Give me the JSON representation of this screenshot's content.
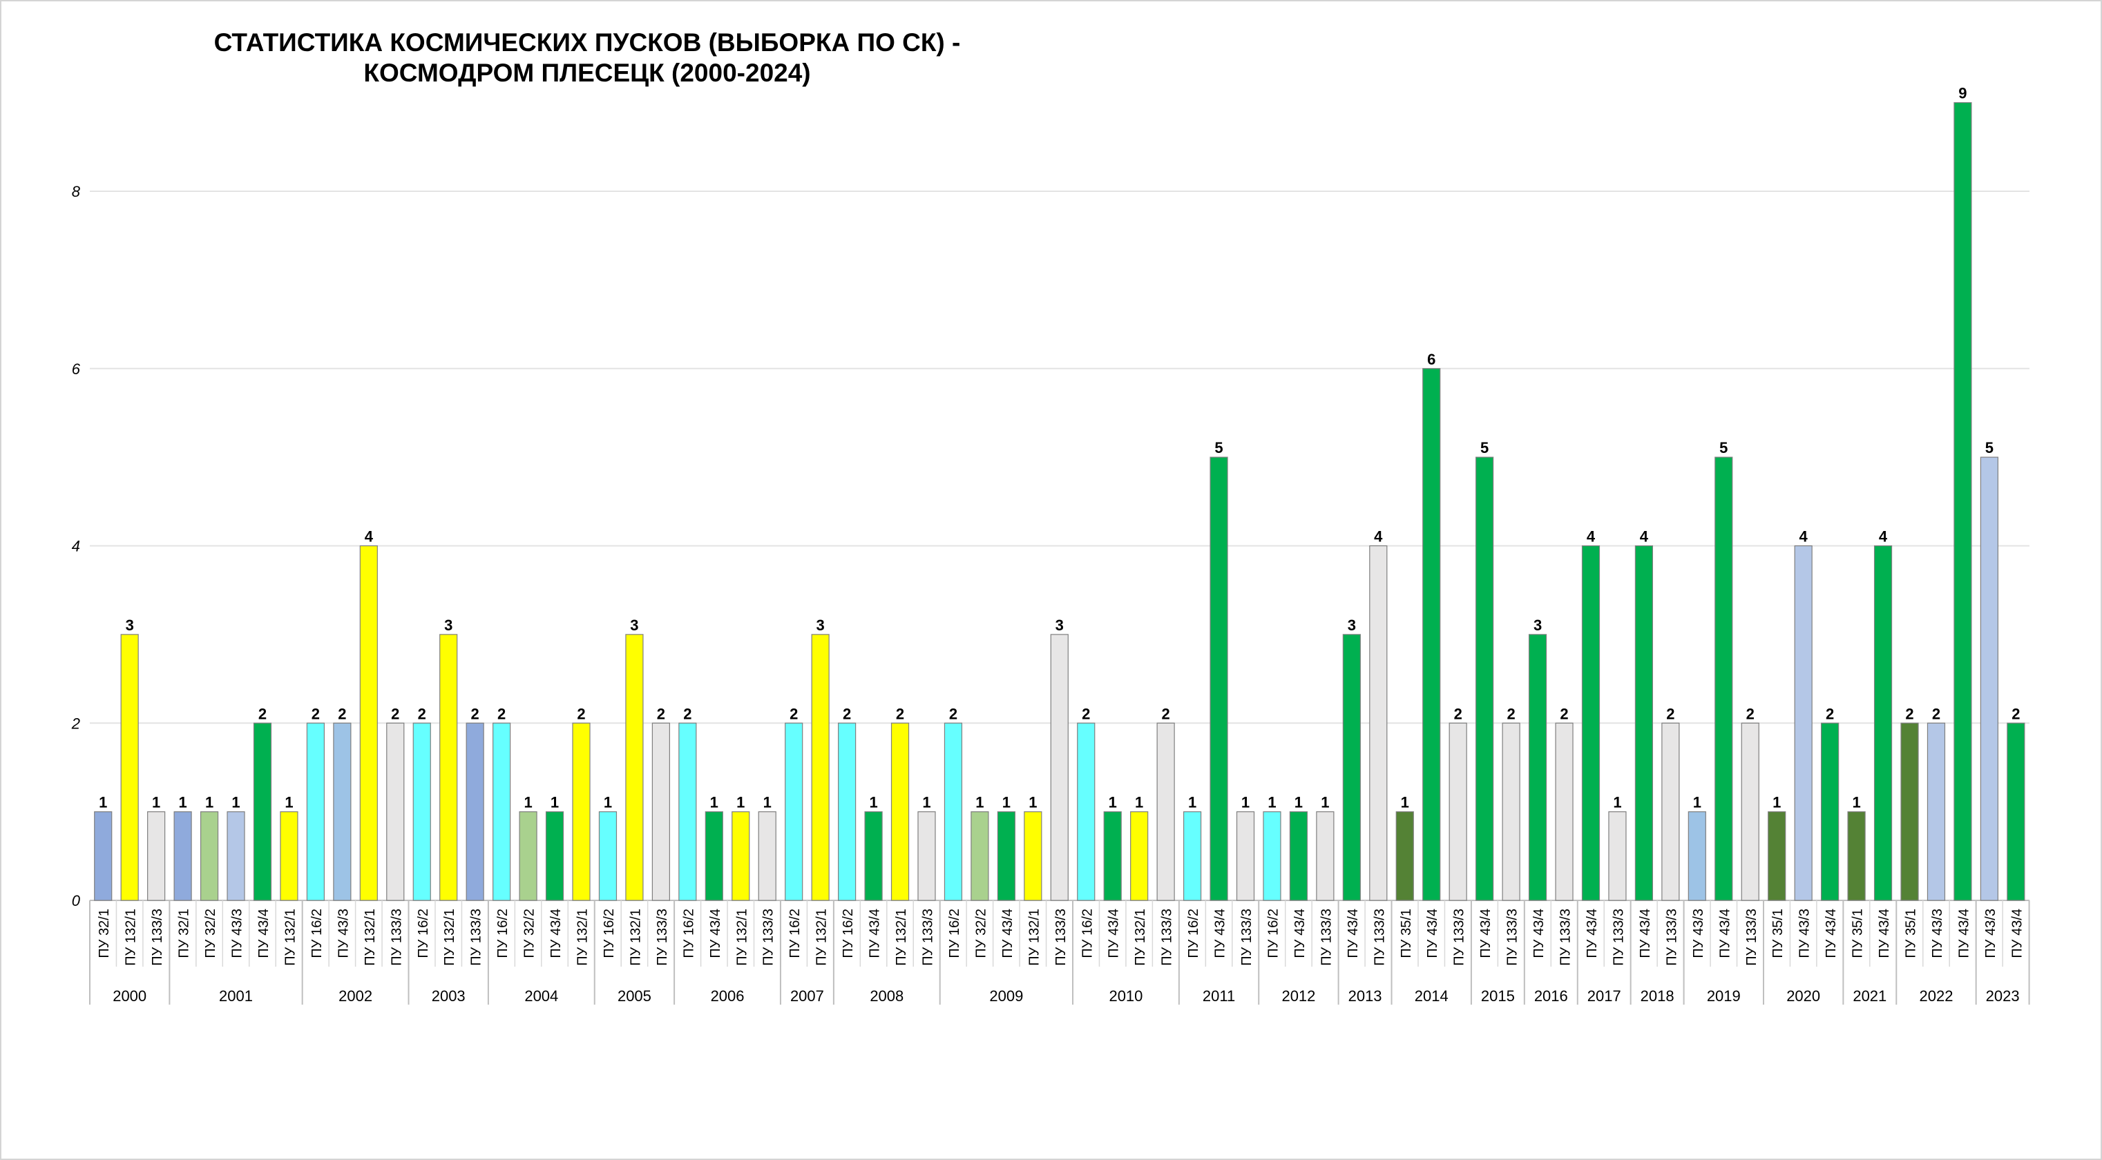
{
  "chart_data": {
    "type": "bar",
    "title": "СТАТИСТИКА КОСМИЧЕСКИХ ПУСКОВ (ВЫБОРКА ПО СК) -\nКОСМОДРОМ ПЛЕСЕЦК (2000-2024)",
    "xlabel": "",
    "ylabel": "",
    "ylim": [
      0,
      9
    ],
    "yticks": [
      0,
      2,
      4,
      6,
      8
    ],
    "grid": true,
    "legend": "none",
    "colors": {
      "ПУ 32/1": "#8faadc",
      "ПУ 132/1": "#ffff00",
      "ПУ 133/3": "#e7e6e6",
      "ПУ 32/2": "#a9d18e",
      "ПУ 43/3": "#b4c7e7",
      "ПУ 43/3 (2002)": "#9dc3e6",
      "ПУ 43/4": "#00b050",
      "ПУ 16/2": "#66ffff",
      "ПУ 35/1": "#548235"
    },
    "groups": [
      {
        "year": "2000",
        "bars": [
          {
            "label": "ПУ 32/1",
            "value": 1,
            "color": "#8faadc"
          },
          {
            "label": "ПУ 132/1",
            "value": 3,
            "color": "#ffff00"
          },
          {
            "label": "ПУ 133/3",
            "value": 1,
            "color": "#e7e6e6"
          }
        ]
      },
      {
        "year": "2001",
        "bars": [
          {
            "label": "ПУ 32/1",
            "value": 1,
            "color": "#8faadc"
          },
          {
            "label": "ПУ 32/2",
            "value": 1,
            "color": "#a9d18e"
          },
          {
            "label": "ПУ 43/3",
            "value": 1,
            "color": "#b4c7e7"
          },
          {
            "label": "ПУ 43/4",
            "value": 2,
            "color": "#00b050"
          },
          {
            "label": "ПУ 132/1",
            "value": 1,
            "color": "#ffff00"
          }
        ]
      },
      {
        "year": "2002",
        "bars": [
          {
            "label": "ПУ 16/2",
            "value": 2,
            "color": "#66ffff"
          },
          {
            "label": "ПУ 43/3",
            "value": 2,
            "color": "#9dc3e6"
          },
          {
            "label": "ПУ 132/1",
            "value": 4,
            "color": "#ffff00"
          },
          {
            "label": "ПУ 133/3",
            "value": 2,
            "color": "#e7e6e6"
          }
        ]
      },
      {
        "year": "2003",
        "bars": [
          {
            "label": "ПУ 16/2",
            "value": 2,
            "color": "#66ffff"
          },
          {
            "label": "ПУ 132/1",
            "value": 3,
            "color": "#ffff00"
          },
          {
            "label": "ПУ 133/3",
            "value": 2,
            "color": "#8faadc"
          }
        ]
      },
      {
        "year": "2004",
        "bars": [
          {
            "label": "ПУ 16/2",
            "value": 2,
            "color": "#66ffff"
          },
          {
            "label": "ПУ 32/2",
            "value": 1,
            "color": "#a9d18e"
          },
          {
            "label": "ПУ 43/4",
            "value": 1,
            "color": "#00b050"
          },
          {
            "label": "ПУ 132/1",
            "value": 2,
            "color": "#ffff00"
          }
        ]
      },
      {
        "year": "2005",
        "bars": [
          {
            "label": "ПУ 16/2",
            "value": 1,
            "color": "#66ffff"
          },
          {
            "label": "ПУ 132/1",
            "value": 3,
            "color": "#ffff00"
          },
          {
            "label": "ПУ 133/3",
            "value": 2,
            "color": "#e7e6e6"
          }
        ]
      },
      {
        "year": "2006",
        "bars": [
          {
            "label": "ПУ 16/2",
            "value": 2,
            "color": "#66ffff"
          },
          {
            "label": "ПУ 43/4",
            "value": 1,
            "color": "#00b050"
          },
          {
            "label": "ПУ 132/1",
            "value": 1,
            "color": "#ffff00"
          },
          {
            "label": "ПУ 133/3",
            "value": 1,
            "color": "#e7e6e6"
          }
        ]
      },
      {
        "year": "2007",
        "bars": [
          {
            "label": "ПУ 16/2",
            "value": 2,
            "color": "#66ffff"
          },
          {
            "label": "ПУ 132/1",
            "value": 3,
            "color": "#ffff00"
          }
        ]
      },
      {
        "year": "2008",
        "bars": [
          {
            "label": "ПУ 16/2",
            "value": 2,
            "color": "#66ffff"
          },
          {
            "label": "ПУ 43/4",
            "value": 1,
            "color": "#00b050"
          },
          {
            "label": "ПУ 132/1",
            "value": 2,
            "color": "#ffff00"
          },
          {
            "label": "ПУ 133/3",
            "value": 1,
            "color": "#e7e6e6"
          }
        ]
      },
      {
        "year": "2009",
        "bars": [
          {
            "label": "ПУ 16/2",
            "value": 2,
            "color": "#66ffff"
          },
          {
            "label": "ПУ 32/2",
            "value": 1,
            "color": "#a9d18e"
          },
          {
            "label": "ПУ 43/4",
            "value": 1,
            "color": "#00b050"
          },
          {
            "label": "ПУ 132/1",
            "value": 1,
            "color": "#ffff00"
          },
          {
            "label": "ПУ 133/3",
            "value": 3,
            "color": "#e7e6e6"
          }
        ]
      },
      {
        "year": "2010",
        "bars": [
          {
            "label": "ПУ 16/2",
            "value": 2,
            "color": "#66ffff"
          },
          {
            "label": "ПУ 43/4",
            "value": 1,
            "color": "#00b050"
          },
          {
            "label": "ПУ 132/1",
            "value": 1,
            "color": "#ffff00"
          },
          {
            "label": "ПУ 133/3",
            "value": 2,
            "color": "#e7e6e6"
          }
        ]
      },
      {
        "year": "2011",
        "bars": [
          {
            "label": "ПУ 16/2",
            "value": 1,
            "color": "#66ffff"
          },
          {
            "label": "ПУ 43/4",
            "value": 5,
            "color": "#00b050"
          },
          {
            "label": "ПУ 133/3",
            "value": 1,
            "color": "#e7e6e6"
          }
        ]
      },
      {
        "year": "2012",
        "bars": [
          {
            "label": "ПУ 16/2",
            "value": 1,
            "color": "#66ffff"
          },
          {
            "label": "ПУ 43/4",
            "value": 1,
            "color": "#00b050"
          },
          {
            "label": "ПУ 133/3",
            "value": 1,
            "color": "#e7e6e6"
          }
        ]
      },
      {
        "year": "2013",
        "bars": [
          {
            "label": "ПУ 43/4",
            "value": 3,
            "color": "#00b050"
          },
          {
            "label": "ПУ 133/3",
            "value": 4,
            "color": "#e7e6e6"
          }
        ]
      },
      {
        "year": "2014",
        "bars": [
          {
            "label": "ПУ 35/1",
            "value": 1,
            "color": "#548235"
          },
          {
            "label": "ПУ 43/4",
            "value": 6,
            "color": "#00b050"
          },
          {
            "label": "ПУ 133/3",
            "value": 2,
            "color": "#e7e6e6"
          }
        ]
      },
      {
        "year": "2015",
        "bars": [
          {
            "label": "ПУ 43/4",
            "value": 5,
            "color": "#00b050"
          },
          {
            "label": "ПУ 133/3",
            "value": 2,
            "color": "#e7e6e6"
          }
        ]
      },
      {
        "year": "2016",
        "bars": [
          {
            "label": "ПУ 43/4",
            "value": 3,
            "color": "#00b050"
          },
          {
            "label": "ПУ 133/3",
            "value": 2,
            "color": "#e7e6e6"
          }
        ]
      },
      {
        "year": "2017",
        "bars": [
          {
            "label": "ПУ 43/4",
            "value": 4,
            "color": "#00b050"
          },
          {
            "label": "ПУ 133/3",
            "value": 1,
            "color": "#e7e6e6"
          }
        ]
      },
      {
        "year": "2018",
        "bars": [
          {
            "label": "ПУ 43/4",
            "value": 4,
            "color": "#00b050"
          },
          {
            "label": "ПУ 133/3",
            "value": 2,
            "color": "#e7e6e6"
          }
        ]
      },
      {
        "year": "2019",
        "bars": [
          {
            "label": "ПУ 43/3",
            "value": 1,
            "color": "#9dc3e6"
          },
          {
            "label": "ПУ 43/4",
            "value": 5,
            "color": "#00b050"
          },
          {
            "label": "ПУ 133/3",
            "value": 2,
            "color": "#e7e6e6"
          }
        ]
      },
      {
        "year": "2020",
        "bars": [
          {
            "label": "ПУ 35/1",
            "value": 1,
            "color": "#548235"
          },
          {
            "label": "ПУ 43/3",
            "value": 4,
            "color": "#b4c7e7"
          },
          {
            "label": "ПУ 43/4",
            "value": 2,
            "color": "#00b050"
          }
        ]
      },
      {
        "year": "2021",
        "bars": [
          {
            "label": "ПУ 35/1",
            "value": 1,
            "color": "#548235"
          },
          {
            "label": "ПУ 43/4",
            "value": 4,
            "color": "#00b050"
          }
        ]
      },
      {
        "year": "2022",
        "bars": [
          {
            "label": "ПУ 35/1",
            "value": 2,
            "color": "#548235"
          },
          {
            "label": "ПУ 43/3",
            "value": 2,
            "color": "#b4c7e7"
          },
          {
            "label": "ПУ 43/4",
            "value": 9,
            "color": "#00b050"
          }
        ]
      },
      {
        "year": "2023",
        "bars": [
          {
            "label": "ПУ 43/3",
            "value": 5,
            "color": "#b4c7e7"
          },
          {
            "label": "ПУ 43/4",
            "value": 2,
            "color": "#00b050"
          }
        ]
      }
    ]
  }
}
